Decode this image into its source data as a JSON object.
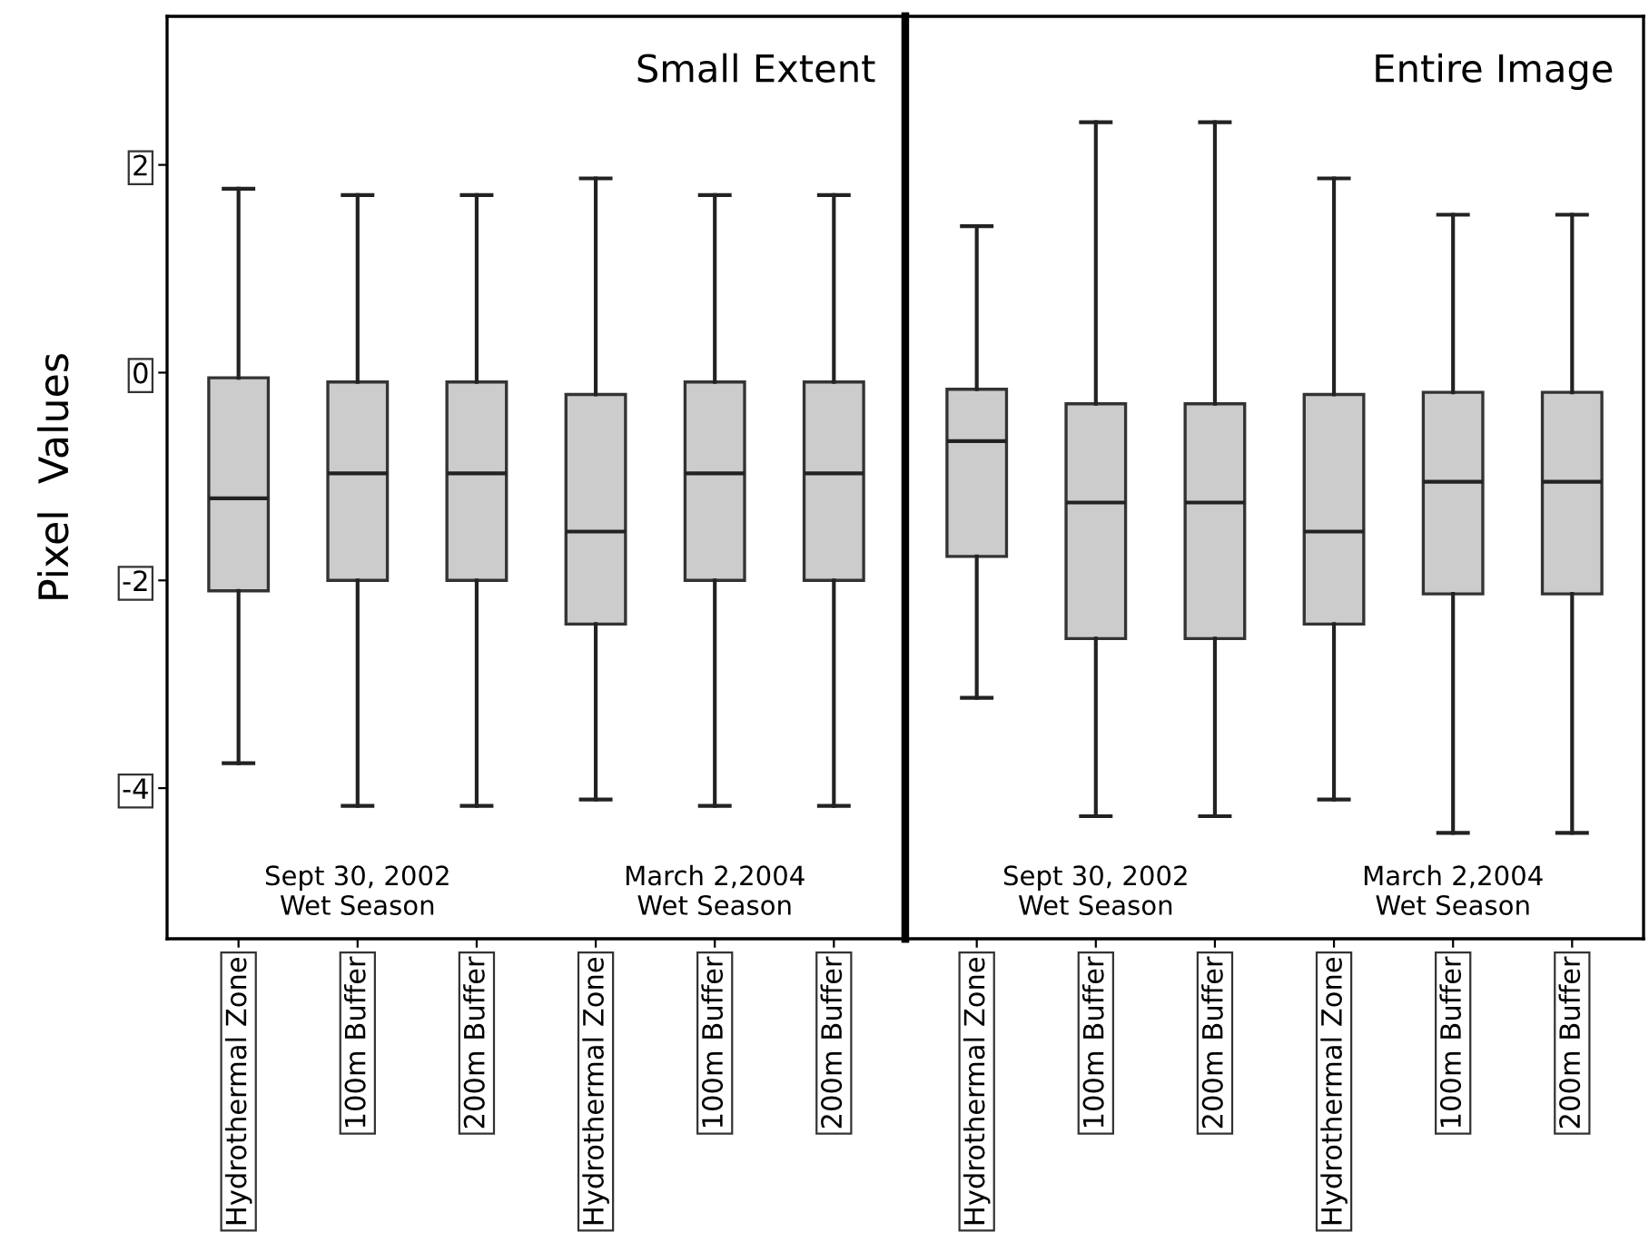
{
  "chart_data": [
    {
      "type": "box",
      "title": "Small Extent",
      "ylabel": "Pixel  Values",
      "categories": [
        "Hydrothermal Zone",
        "100m Buffer",
        "200m Buffer",
        "Hydrothermal Zone",
        "100m Buffer",
        "200m Buffer"
      ],
      "color": "#cccccc",
      "ylim": [
        -5.45,
        3.43
      ],
      "yticks": [
        2,
        0,
        -2,
        -4
      ],
      "grid": false,
      "boxes": [
        {
          "low": -3.76,
          "q1": -2.1,
          "median": -1.21,
          "q3": -0.05,
          "high": 1.77
        },
        {
          "low": -4.17,
          "q1": -2.0,
          "median": -0.97,
          "q3": -0.09,
          "high": 1.71
        },
        {
          "low": -4.17,
          "q1": -2.0,
          "median": -0.97,
          "q3": -0.09,
          "high": 1.71
        },
        {
          "low": -4.11,
          "q1": -2.42,
          "median": -1.53,
          "q3": -0.21,
          "high": 1.87
        },
        {
          "low": -4.17,
          "q1": -2.0,
          "median": -0.97,
          "q3": -0.09,
          "high": 1.71
        },
        {
          "low": -4.17,
          "q1": -2.0,
          "median": -0.97,
          "q3": -0.09,
          "high": 1.71
        }
      ],
      "annotations": [
        "Sept 30, 2002\nWet Season",
        "March 2,2004\nWet Season"
      ]
    },
    {
      "type": "box",
      "title": "Entire Image",
      "categories": [
        "Hydrothermal Zone",
        "100m Buffer",
        "200m Buffer",
        "Hydrothermal Zone",
        "100m Buffer",
        "200m Buffer"
      ],
      "color": "#cccccc",
      "ylim": [
        -5.45,
        3.43
      ],
      "yticks": [
        2,
        0,
        -2,
        -4
      ],
      "tick_labels": "x",
      "grid": false,
      "boxes": [
        {
          "low": -3.13,
          "q1": -1.77,
          "median": -0.66,
          "q3": -0.16,
          "high": 1.41
        },
        {
          "low": -4.27,
          "q1": -2.56,
          "median": -1.25,
          "q3": -0.3,
          "high": 2.41
        },
        {
          "low": -4.27,
          "q1": -2.56,
          "median": -1.25,
          "q3": -0.3,
          "high": 2.41
        },
        {
          "low": -4.11,
          "q1": -2.42,
          "median": -1.53,
          "q3": -0.21,
          "high": 1.87
        },
        {
          "low": -4.43,
          "q1": -2.13,
          "median": -1.05,
          "q3": -0.19,
          "high": 1.52
        },
        {
          "low": -4.43,
          "q1": -2.13,
          "median": -1.05,
          "q3": -0.19,
          "high": 1.52
        }
      ],
      "annotations": [
        "Sept 30, 2002\nWet Season",
        "March 2,2004\nWet Season"
      ]
    }
  ]
}
